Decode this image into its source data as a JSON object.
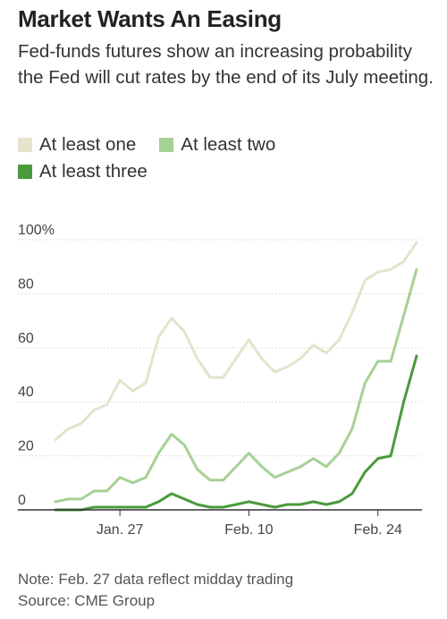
{
  "title": "Market Wants An Easing",
  "subtitle": "Fed-funds futures show an increasing probability the Fed will cut rates by the end of its July meeting.",
  "note": "Note: Feb. 27 data reflect midday trading",
  "source": "Source: CME Group",
  "colors": {
    "at_least_one": "#e3e4cb",
    "at_least_two": "#a6d195",
    "at_least_three": "#4a9a3c",
    "axis": "#555555",
    "grid": "#d2d2d2"
  },
  "chart_data": {
    "type": "line",
    "x": [
      "Jan. 20",
      "Jan. 21",
      "Jan. 22",
      "Jan. 23",
      "Jan. 24",
      "Jan. 27",
      "Jan. 28",
      "Jan. 29",
      "Jan. 30",
      "Jan. 31",
      "Feb. 3",
      "Feb. 4",
      "Feb. 5",
      "Feb. 6",
      "Feb. 7",
      "Feb. 10",
      "Feb. 11",
      "Feb. 12",
      "Feb. 13",
      "Feb. 14",
      "Feb. 17",
      "Feb. 18",
      "Feb. 19",
      "Feb. 20",
      "Feb. 21",
      "Feb. 24",
      "Feb. 25",
      "Feb. 26",
      "Feb. 27"
    ],
    "x_tick_labels": [
      {
        "at": "Jan. 27",
        "label": "Jan. 27"
      },
      {
        "at": "Feb. 10",
        "label": "Feb. 10"
      },
      {
        "at": "Feb. 24",
        "label": "Feb. 24"
      }
    ],
    "y_ticks": [
      0,
      20,
      40,
      60,
      80,
      100
    ],
    "y_tick_labels": [
      "0",
      "20",
      "40",
      "60",
      "80",
      "100%"
    ],
    "ylim": [
      0,
      100
    ],
    "grid": true,
    "legend_position": "top-left",
    "series": [
      {
        "name": "At least one",
        "key": "at_least_one",
        "values": [
          26,
          30,
          32,
          37,
          39,
          48,
          44,
          47,
          64,
          71,
          66,
          56,
          49,
          49,
          56,
          63,
          56,
          51,
          53,
          56,
          61,
          58,
          63,
          73,
          85,
          88,
          89,
          92,
          99
        ]
      },
      {
        "name": "At least two",
        "key": "at_least_two",
        "values": [
          3,
          4,
          4,
          7,
          7,
          12,
          10,
          12,
          21,
          28,
          24,
          15,
          11,
          11,
          16,
          21,
          16,
          12,
          14,
          16,
          19,
          16,
          21,
          30,
          47,
          55,
          55,
          72,
          89
        ]
      },
      {
        "name": "At least three",
        "key": "at_least_three",
        "values": [
          0,
          0,
          0,
          1,
          1,
          1,
          1,
          1,
          3,
          6,
          4,
          2,
          1,
          1,
          2,
          3,
          2,
          1,
          2,
          2,
          3,
          2,
          3,
          6,
          14,
          19,
          20,
          40,
          57
        ]
      }
    ]
  }
}
